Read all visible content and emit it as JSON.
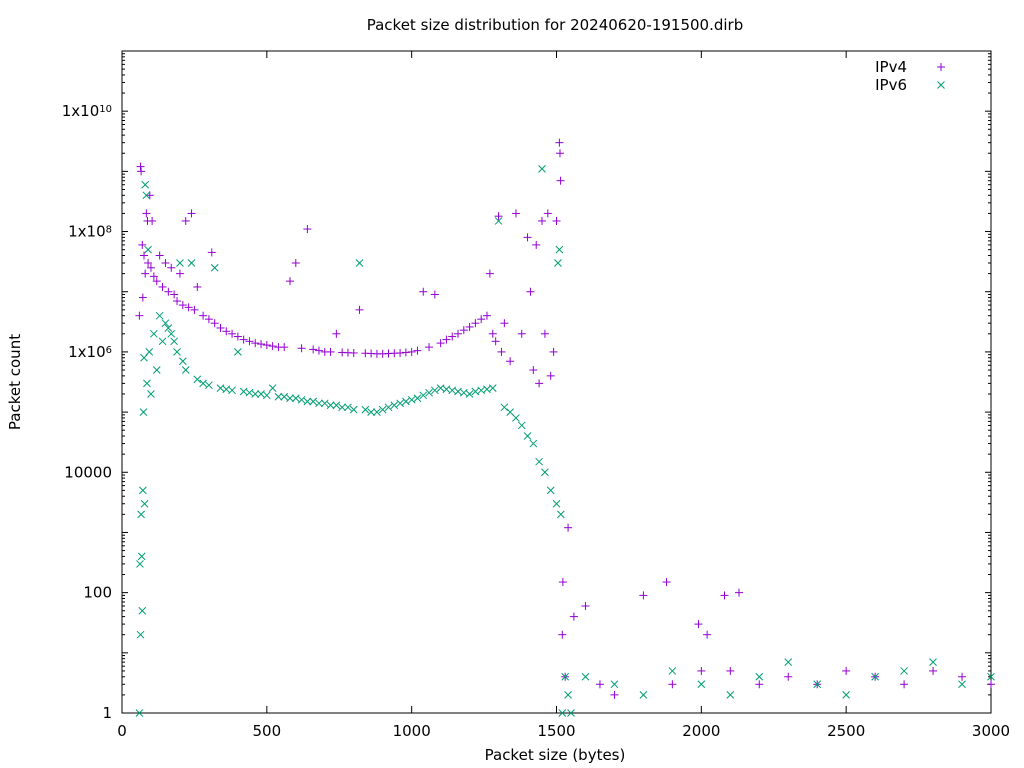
{
  "chart_data": {
    "type": "scatter",
    "title": "Packet size distribution for 20240620-191500.dirb",
    "xlabel": "Packet size (bytes)",
    "ylabel": "Packet count",
    "xlim": [
      0,
      3000
    ],
    "ylim": [
      1,
      100000000000
    ],
    "yscale": "log",
    "grid": false,
    "legend_position": "top-right",
    "x_ticks": [
      {
        "value": 0,
        "label": "0"
      },
      {
        "value": 500,
        "label": "500"
      },
      {
        "value": 1000,
        "label": "1000"
      },
      {
        "value": 1500,
        "label": "1500"
      },
      {
        "value": 2000,
        "label": "2000"
      },
      {
        "value": 2500,
        "label": "2500"
      },
      {
        "value": 3000,
        "label": "3000"
      }
    ],
    "y_ticks": [
      {
        "value": 1,
        "label": "1"
      },
      {
        "value": 100,
        "label": "100"
      },
      {
        "value": 10000,
        "label": "10000"
      },
      {
        "value": 1000000,
        "label": "1x10",
        "sup": "6"
      },
      {
        "value": 100000000,
        "label": "1x10",
        "sup": "8"
      },
      {
        "value": 10000000000,
        "label": "1x10",
        "sup": "10"
      }
    ],
    "series": [
      {
        "name": "IPv4",
        "marker": "plus",
        "color": "#9400d3",
        "points": [
          [
            60,
            4000000
          ],
          [
            64,
            1200000000
          ],
          [
            66,
            1000000000
          ],
          [
            70,
            60000000
          ],
          [
            72,
            8000000
          ],
          [
            76,
            40000000
          ],
          [
            80,
            20000000
          ],
          [
            84,
            200000000
          ],
          [
            88,
            150000000
          ],
          [
            90,
            30000000
          ],
          [
            96,
            400000000
          ],
          [
            100,
            25000000
          ],
          [
            104,
            150000000
          ],
          [
            110,
            18000000
          ],
          [
            120,
            15000000
          ],
          [
            130,
            40000000
          ],
          [
            140,
            12000000
          ],
          [
            150,
            30000000
          ],
          [
            160,
            10000000
          ],
          [
            170,
            25000000
          ],
          [
            180,
            9000000
          ],
          [
            190,
            7000000
          ],
          [
            200,
            20000000
          ],
          [
            210,
            6000000
          ],
          [
            220,
            150000000
          ],
          [
            230,
            5500000
          ],
          [
            240,
            200000000
          ],
          [
            250,
            5000000
          ],
          [
            260,
            12000000
          ],
          [
            280,
            4000000
          ],
          [
            300,
            3500000
          ],
          [
            310,
            45000000
          ],
          [
            320,
            3000000
          ],
          [
            340,
            2500000
          ],
          [
            360,
            2200000
          ],
          [
            380,
            2000000
          ],
          [
            400,
            1800000
          ],
          [
            420,
            1600000
          ],
          [
            440,
            1500000
          ],
          [
            460,
            1400000
          ],
          [
            480,
            1350000
          ],
          [
            500,
            1300000
          ],
          [
            520,
            1250000
          ],
          [
            540,
            1200000
          ],
          [
            560,
            1200000
          ],
          [
            580,
            15000000
          ],
          [
            600,
            30000000
          ],
          [
            620,
            1150000
          ],
          [
            640,
            110000000
          ],
          [
            660,
            1100000
          ],
          [
            680,
            1050000
          ],
          [
            700,
            1000000
          ],
          [
            720,
            1000000
          ],
          [
            740,
            2000000
          ],
          [
            760,
            980000
          ],
          [
            780,
            970000
          ],
          [
            800,
            960000
          ],
          [
            820,
            5000000
          ],
          [
            840,
            950000
          ],
          [
            860,
            940000
          ],
          [
            880,
            930000
          ],
          [
            900,
            930000
          ],
          [
            920,
            940000
          ],
          [
            940,
            950000
          ],
          [
            960,
            960000
          ],
          [
            980,
            980000
          ],
          [
            1000,
            1000000
          ],
          [
            1020,
            1050000
          ],
          [
            1040,
            10000000
          ],
          [
            1060,
            1200000
          ],
          [
            1080,
            9000000
          ],
          [
            1100,
            1400000
          ],
          [
            1120,
            1600000
          ],
          [
            1140,
            1800000
          ],
          [
            1160,
            2000000
          ],
          [
            1180,
            2300000
          ],
          [
            1200,
            2600000
          ],
          [
            1220,
            3000000
          ],
          [
            1240,
            3500000
          ],
          [
            1260,
            4000000
          ],
          [
            1270,
            20000000
          ],
          [
            1280,
            2000000
          ],
          [
            1290,
            1500000
          ],
          [
            1300,
            180000000
          ],
          [
            1310,
            1000000
          ],
          [
            1320,
            3000000
          ],
          [
            1340,
            700000
          ],
          [
            1360,
            200000000
          ],
          [
            1380,
            2000000
          ],
          [
            1400,
            80000000
          ],
          [
            1410,
            10000000
          ],
          [
            1420,
            500000
          ],
          [
            1430,
            60000000
          ],
          [
            1440,
            300000
          ],
          [
            1450,
            150000000
          ],
          [
            1460,
            2000000
          ],
          [
            1470,
            200000000
          ],
          [
            1480,
            400000
          ],
          [
            1490,
            1000000
          ],
          [
            1500,
            150000000
          ],
          [
            1510,
            3000000000
          ],
          [
            1512,
            2000000000
          ],
          [
            1514,
            700000000
          ],
          [
            1520,
            20
          ],
          [
            1522,
            150
          ],
          [
            1530,
            4
          ],
          [
            1540,
            1200
          ],
          [
            1560,
            40
          ],
          [
            1600,
            60
          ],
          [
            1650,
            3
          ],
          [
            1700,
            2
          ],
          [
            1800,
            90
          ],
          [
            1880,
            150
          ],
          [
            1900,
            3
          ],
          [
            1990,
            30
          ],
          [
            2000,
            5
          ],
          [
            2020,
            20
          ],
          [
            2080,
            90
          ],
          [
            2100,
            5
          ],
          [
            2130,
            100
          ],
          [
            2200,
            3
          ],
          [
            2300,
            4
          ],
          [
            2400,
            3
          ],
          [
            2500,
            5
          ],
          [
            2600,
            4
          ],
          [
            2700,
            3
          ],
          [
            2800,
            5
          ],
          [
            2900,
            4
          ],
          [
            3000,
            3
          ]
        ]
      },
      {
        "name": "IPv6",
        "marker": "cross",
        "color": "#009e73",
        "points": [
          [
            60,
            1
          ],
          [
            62,
            300
          ],
          [
            64,
            20
          ],
          [
            66,
            2000
          ],
          [
            68,
            400
          ],
          [
            70,
            50
          ],
          [
            72,
            5000
          ],
          [
            74,
            100000
          ],
          [
            76,
            800000
          ],
          [
            78,
            3000
          ],
          [
            80,
            600000000
          ],
          [
            84,
            400000000
          ],
          [
            86,
            300000
          ],
          [
            90,
            50000000
          ],
          [
            94,
            1000000
          ],
          [
            100,
            200000
          ],
          [
            110,
            2000000
          ],
          [
            120,
            500000
          ],
          [
            130,
            4000000
          ],
          [
            140,
            1500000
          ],
          [
            150,
            3000000
          ],
          [
            160,
            2500000
          ],
          [
            170,
            2000000
          ],
          [
            180,
            1500000
          ],
          [
            190,
            1000000
          ],
          [
            200,
            30000000
          ],
          [
            210,
            700000
          ],
          [
            220,
            500000
          ],
          [
            240,
            30000000
          ],
          [
            260,
            350000
          ],
          [
            280,
            300000
          ],
          [
            300,
            280000
          ],
          [
            320,
            25000000
          ],
          [
            340,
            250000
          ],
          [
            360,
            240000
          ],
          [
            380,
            230000
          ],
          [
            400,
            1000000
          ],
          [
            420,
            220000
          ],
          [
            440,
            210000
          ],
          [
            460,
            200000
          ],
          [
            480,
            200000
          ],
          [
            500,
            190000
          ],
          [
            520,
            250000
          ],
          [
            540,
            180000
          ],
          [
            560,
            180000
          ],
          [
            580,
            170000
          ],
          [
            600,
            170000
          ],
          [
            620,
            160000
          ],
          [
            640,
            150000
          ],
          [
            660,
            150000
          ],
          [
            680,
            140000
          ],
          [
            700,
            140000
          ],
          [
            720,
            130000
          ],
          [
            740,
            130000
          ],
          [
            760,
            120000
          ],
          [
            780,
            120000
          ],
          [
            800,
            110000
          ],
          [
            820,
            30000000
          ],
          [
            840,
            110000
          ],
          [
            860,
            100000
          ],
          [
            880,
            100000
          ],
          [
            900,
            110000
          ],
          [
            920,
            120000
          ],
          [
            940,
            130000
          ],
          [
            960,
            140000
          ],
          [
            980,
            150000
          ],
          [
            1000,
            160000
          ],
          [
            1020,
            170000
          ],
          [
            1040,
            190000
          ],
          [
            1060,
            210000
          ],
          [
            1080,
            230000
          ],
          [
            1100,
            250000
          ],
          [
            1120,
            240000
          ],
          [
            1140,
            230000
          ],
          [
            1160,
            220000
          ],
          [
            1180,
            210000
          ],
          [
            1200,
            200000
          ],
          [
            1220,
            220000
          ],
          [
            1240,
            230000
          ],
          [
            1260,
            240000
          ],
          [
            1280,
            250000
          ],
          [
            1300,
            150000000
          ],
          [
            1320,
            120000
          ],
          [
            1340,
            100000
          ],
          [
            1360,
            80000
          ],
          [
            1380,
            60000
          ],
          [
            1400,
            40000
          ],
          [
            1420,
            30000
          ],
          [
            1440,
            15000
          ],
          [
            1450,
            1100000000
          ],
          [
            1460,
            10000
          ],
          [
            1480,
            5000
          ],
          [
            1500,
            3000
          ],
          [
            1505,
            30000000
          ],
          [
            1510,
            50000000
          ],
          [
            1515,
            2000
          ],
          [
            1520,
            1
          ],
          [
            1530,
            4
          ],
          [
            1540,
            2
          ],
          [
            1550,
            1
          ],
          [
            1600,
            4
          ],
          [
            1700,
            3
          ],
          [
            1800,
            2
          ],
          [
            1900,
            5
          ],
          [
            2000,
            3
          ],
          [
            2100,
            2
          ],
          [
            2200,
            4
          ],
          [
            2300,
            7
          ],
          [
            2400,
            3
          ],
          [
            2500,
            2
          ],
          [
            2600,
            4
          ],
          [
            2700,
            5
          ],
          [
            2800,
            7
          ],
          [
            2900,
            3
          ],
          [
            3000,
            4
          ]
        ]
      }
    ]
  }
}
